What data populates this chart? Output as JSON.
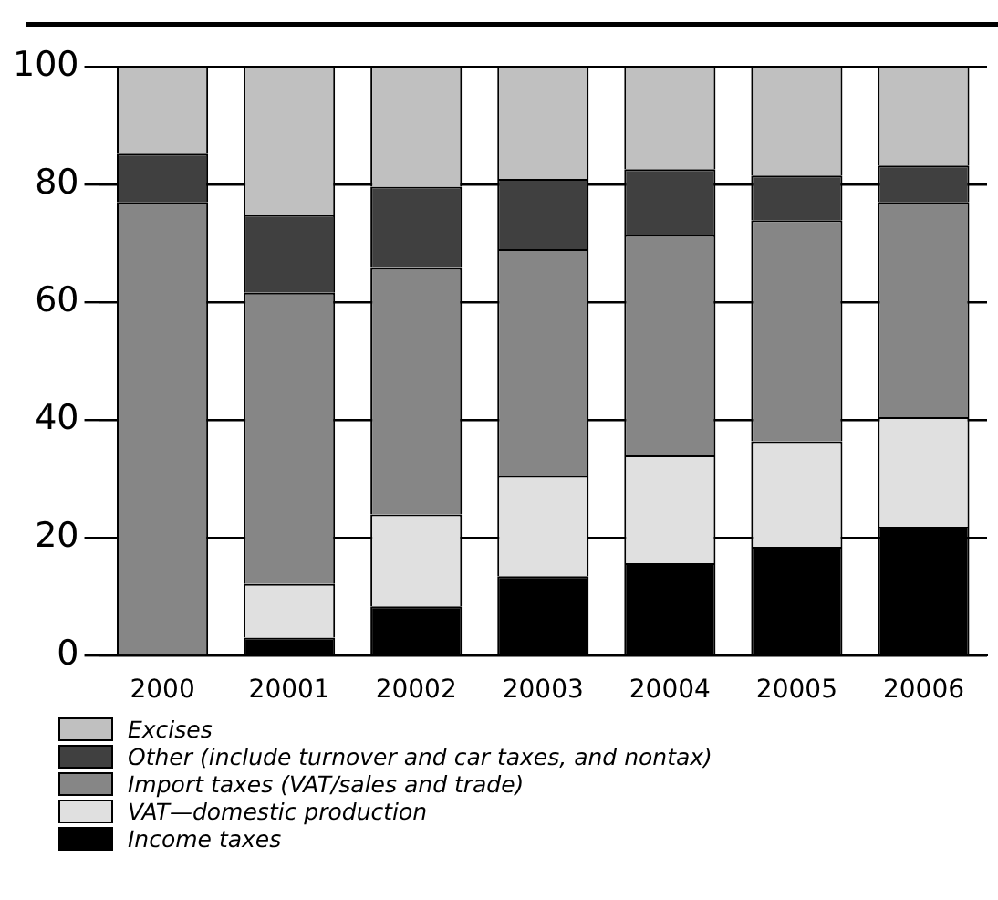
{
  "chart_data": {
    "type": "bar",
    "stacked": true,
    "categories": [
      "2000",
      "20001",
      "20002",
      "20003",
      "20004",
      "20005",
      "20006"
    ],
    "series": [
      {
        "name": "Income taxes",
        "color": "#000000",
        "values": [
          0,
          3.1,
          8.4,
          13.5,
          15.7,
          18.5,
          21.9
        ]
      },
      {
        "name": "VAT—domestic production",
        "color": "#e0e0e0",
        "values": [
          0,
          9.1,
          15.6,
          17.0,
          18.3,
          17.9,
          18.6
        ]
      },
      {
        "name": "Import taxes (VAT/sales and trade)",
        "color": "#868686",
        "values": [
          77,
          49.4,
          41.8,
          38.5,
          37.4,
          37.5,
          36.5
        ]
      },
      {
        "name": "Other (include turnover and car taxes, and nontax)",
        "color": "#404040",
        "values": [
          8.2,
          13.2,
          13.8,
          11.9,
          11.2,
          7.6,
          6.2
        ]
      },
      {
        "name": "Excises",
        "color": "#c0c0c0",
        "values": [
          14.8,
          25.2,
          20.4,
          19.1,
          17.4,
          18.5,
          16.8
        ]
      }
    ],
    "ylim": [
      0,
      100
    ],
    "yticks": [
      0,
      20,
      40,
      60,
      80,
      100
    ],
    "grid": "y",
    "legend": "bottom"
  }
}
